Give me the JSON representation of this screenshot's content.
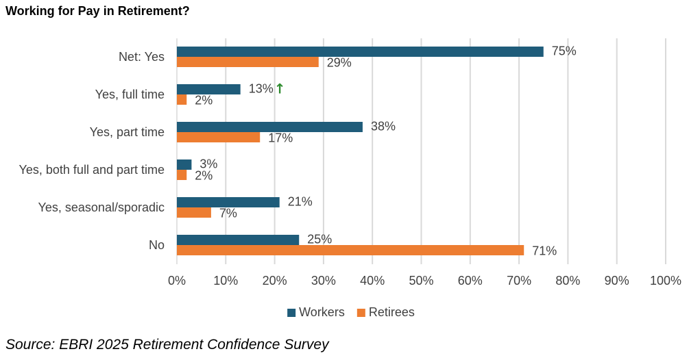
{
  "chart_data": {
    "type": "bar",
    "orientation": "horizontal",
    "title": "Working for Pay in Retirement?",
    "categories": [
      "Net: Yes",
      "Yes, full time",
      "Yes, part time",
      "Yes, both full and part time",
      "Yes, seasonal/sporadic",
      "No"
    ],
    "series": [
      {
        "name": "Workers",
        "values": [
          75,
          13,
          38,
          3,
          21,
          25
        ],
        "labels": [
          "75%",
          "13%",
          "38%",
          "3%",
          "21%",
          "25%"
        ],
        "color": "#1F5C7A"
      },
      {
        "name": "Retirees",
        "values": [
          29,
          2,
          17,
          2,
          7,
          71
        ],
        "labels": [
          "29%",
          "2%",
          "17%",
          "2%",
          "7%",
          "71%"
        ],
        "color": "#ED7D31"
      }
    ],
    "xlim": [
      0,
      100
    ],
    "xticks": [
      "0%",
      "10%",
      "20%",
      "30%",
      "40%",
      "50%",
      "60%",
      "70%",
      "80%",
      "90%",
      "100%"
    ],
    "grid": true,
    "legend_position": "bottom",
    "annotations": [
      {
        "category": "Yes, full time",
        "series": "Workers",
        "icon": "up-arrow-icon",
        "symbol": "↑",
        "color": "#2E8B2E"
      }
    ]
  },
  "source": "Source: EBRI 2025 Retirement Confidence Survey"
}
